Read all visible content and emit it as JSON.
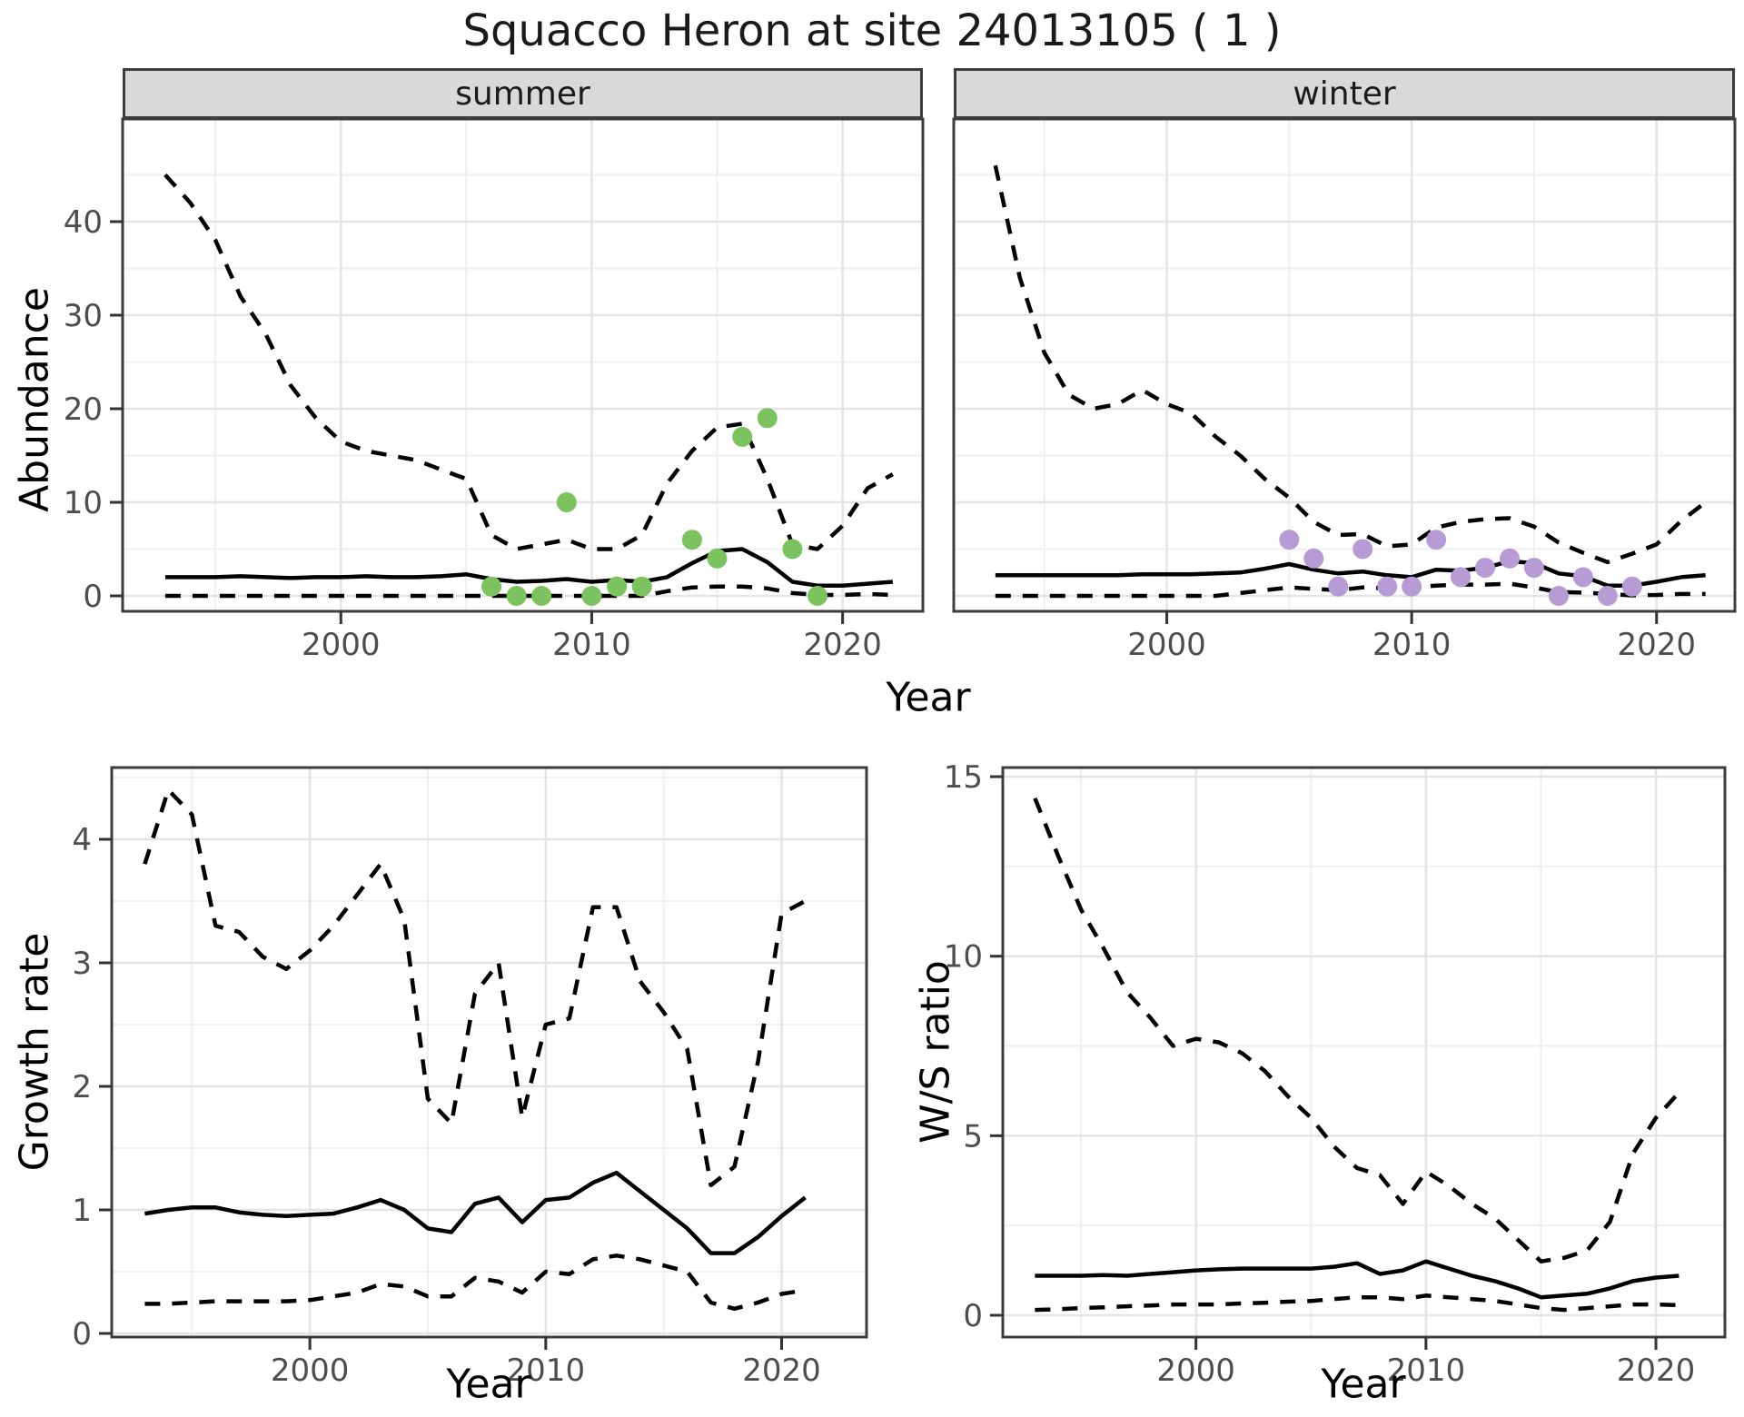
{
  "title": "Squacco Heron at site 24013105 ( 1 )",
  "facets": {
    "summer": "summer",
    "winter": "winter"
  },
  "axes": {
    "abundance_label": "Abundance",
    "top_x_label": "Year",
    "growth_label": "Growth rate",
    "ws_label": "W/S ratio",
    "bottom_left_x_label": "Year",
    "bottom_right_x_label": "Year"
  },
  "colors": {
    "summer_point": "#7AC35F",
    "winter_point": "#B79BD4",
    "line": "#000000",
    "grid_major": "#E4E4E4",
    "grid_minor": "#EFEFEF",
    "strip_bg": "#D9D9D9",
    "panel_border": "#3C3C3C",
    "tick_mark": "#333333",
    "tick_text": "#4D4D4D"
  },
  "chart_data": [
    {
      "id": "abundance-summer",
      "type": "line",
      "facet": "summer",
      "ylabel": "Abundance",
      "xlabel": "Year",
      "x_ticks": [
        2000,
        2010,
        2020
      ],
      "y_ticks": [
        0,
        10,
        20,
        30,
        40
      ],
      "x_range": [
        1991.3,
        2023.2
      ],
      "y_range": [
        -1.7,
        50.9
      ],
      "grid": true,
      "years": [
        1993,
        1994,
        1995,
        1996,
        1997,
        1998,
        1999,
        2000,
        2001,
        2002,
        2003,
        2004,
        2005,
        2006,
        2007,
        2008,
        2009,
        2010,
        2011,
        2012,
        2013,
        2014,
        2015,
        2016,
        2017,
        2018,
        2019,
        2020,
        2021,
        2022
      ],
      "series": [
        {
          "name": "upper_ci",
          "style": "dashed",
          "values": [
            45,
            42,
            38,
            32,
            28,
            22.5,
            19,
            16.5,
            15.5,
            15,
            14.5,
            13.5,
            12.5,
            6.5,
            5,
            5.5,
            6,
            5,
            5,
            6.5,
            12,
            15.5,
            18,
            18.4,
            12.5,
            5.5,
            5,
            7.5,
            11.5,
            13
          ]
        },
        {
          "name": "median",
          "style": "solid",
          "values": [
            2,
            2,
            2,
            2.1,
            2,
            1.9,
            2,
            2,
            2.1,
            2,
            2,
            2.1,
            2.3,
            1.8,
            1.5,
            1.6,
            1.8,
            1.5,
            1.7,
            1.5,
            2,
            3.5,
            4.8,
            5,
            3.6,
            1.5,
            1.1,
            1.1,
            1.3,
            1.5
          ]
        },
        {
          "name": "lower_ci",
          "style": "dashed",
          "values": [
            0,
            0,
            0,
            0,
            0,
            0,
            0,
            0,
            0,
            0,
            0,
            0,
            0,
            0,
            0,
            0,
            0,
            0,
            0,
            0,
            0.5,
            0.9,
            1,
            1,
            0.8,
            0.3,
            0.1,
            0.1,
            0.2,
            0.1
          ]
        }
      ],
      "points": {
        "name": "summer observations",
        "color": "#7AC35F",
        "years": [
          2006,
          2007,
          2008,
          2009,
          2010,
          2011,
          2012,
          2014,
          2015,
          2016,
          2017,
          2018,
          2019
        ],
        "values": [
          1,
          0,
          0,
          10,
          0,
          1,
          1,
          6,
          4,
          17,
          19,
          5,
          0
        ]
      }
    },
    {
      "id": "abundance-winter",
      "type": "line",
      "facet": "winter",
      "ylabel": "Abundance",
      "xlabel": "Year",
      "x_ticks": [
        2000,
        2010,
        2020
      ],
      "y_ticks": [
        0,
        10,
        20,
        30,
        40
      ],
      "x_range": [
        1991.3,
        2023.2
      ],
      "y_range": [
        -1.7,
        50.9
      ],
      "grid": true,
      "years": [
        1993,
        1994,
        1995,
        1996,
        1997,
        1998,
        1999,
        2000,
        2001,
        2002,
        2003,
        2004,
        2005,
        2006,
        2007,
        2008,
        2009,
        2010,
        2011,
        2012,
        2013,
        2014,
        2015,
        2016,
        2017,
        2018,
        2019,
        2020,
        2021,
        2022
      ],
      "series": [
        {
          "name": "upper_ci",
          "style": "dashed",
          "values": [
            46,
            34,
            26,
            21.5,
            20,
            20.5,
            22,
            20.5,
            19.5,
            17,
            15,
            12.5,
            10.5,
            7.9,
            6.5,
            6.6,
            5.3,
            5.5,
            7.3,
            7.9,
            8.2,
            8.3,
            7.4,
            5.7,
            4.6,
            3.6,
            4.5,
            5.5,
            8,
            10
          ]
        },
        {
          "name": "median",
          "style": "solid",
          "values": [
            2.2,
            2.2,
            2.2,
            2.2,
            2.2,
            2.2,
            2.3,
            2.3,
            2.3,
            2.4,
            2.5,
            2.9,
            3.4,
            2.8,
            2.4,
            2.6,
            2.2,
            2,
            2.8,
            2.7,
            3,
            3.7,
            3.5,
            2.4,
            2.1,
            1.1,
            1.1,
            1.5,
            2,
            2.2
          ]
        },
        {
          "name": "lower_ci",
          "style": "dashed",
          "values": [
            0,
            0,
            0,
            0,
            0,
            0,
            0,
            0,
            0,
            0,
            0.3,
            0.6,
            0.9,
            0.75,
            0.6,
            0.9,
            0.8,
            0.9,
            1.1,
            1.2,
            1.2,
            1.3,
            0.9,
            0.4,
            0.35,
            0.2,
            0.05,
            0.1,
            0.2,
            0.2
          ]
        }
      ],
      "points": {
        "name": "winter observations",
        "color": "#B79BD4",
        "years": [
          2005,
          2006,
          2007,
          2008,
          2009,
          2010,
          2011,
          2012,
          2013,
          2014,
          2015,
          2016,
          2017,
          2018,
          2019
        ],
        "values": [
          6,
          4,
          1,
          5,
          1,
          1,
          6,
          2,
          3,
          4,
          3,
          0,
          2,
          0,
          1
        ]
      }
    },
    {
      "id": "growth-rate",
      "type": "line",
      "facet": null,
      "ylabel": "Growth rate",
      "xlabel": "Year",
      "x_ticks": [
        2000,
        2010,
        2020
      ],
      "y_ticks": [
        0,
        1,
        2,
        3,
        4
      ],
      "x_range": [
        1991.6,
        2023.6
      ],
      "y_range": [
        -0.03,
        4.61
      ],
      "grid": true,
      "years": [
        1993,
        1994,
        1995,
        1996,
        1997,
        1998,
        1999,
        2000,
        2001,
        2002,
        2003,
        2004,
        2005,
        2006,
        2007,
        2008,
        2009,
        2010,
        2011,
        2012,
        2013,
        2014,
        2015,
        2016,
        2017,
        2018,
        2019,
        2020,
        2021
      ],
      "series": [
        {
          "name": "upper_ci",
          "style": "dashed",
          "values": [
            3.8,
            4.4,
            4.2,
            3.3,
            3.25,
            3.05,
            2.95,
            3.1,
            3.3,
            3.55,
            3.8,
            3.35,
            1.9,
            1.7,
            2.75,
            3.0,
            1.75,
            2.5,
            2.55,
            3.45,
            3.45,
            2.85,
            2.6,
            2.3,
            1.2,
            1.35,
            2.2,
            3.4,
            3.5
          ]
        },
        {
          "name": "median",
          "style": "solid",
          "values": [
            0.97,
            1.0,
            1.02,
            1.02,
            0.98,
            0.96,
            0.95,
            0.96,
            0.97,
            1.02,
            1.08,
            1.0,
            0.85,
            0.82,
            1.05,
            1.1,
            0.9,
            1.08,
            1.1,
            1.22,
            1.3,
            1.15,
            1.0,
            0.85,
            0.65,
            0.65,
            0.78,
            0.95,
            1.1
          ]
        },
        {
          "name": "lower_ci",
          "style": "dashed",
          "values": [
            0.24,
            0.24,
            0.25,
            0.26,
            0.26,
            0.26,
            0.26,
            0.27,
            0.3,
            0.33,
            0.4,
            0.38,
            0.3,
            0.3,
            0.45,
            0.42,
            0.33,
            0.5,
            0.48,
            0.6,
            0.63,
            0.6,
            0.55,
            0.5,
            0.25,
            0.2,
            0.25,
            0.32,
            0.35
          ]
        }
      ],
      "points": null
    },
    {
      "id": "ws-ratio",
      "type": "line",
      "facet": null,
      "ylabel": "W/S ratio",
      "xlabel": "Year",
      "x_ticks": [
        2000,
        2010,
        2020
      ],
      "y_ticks": [
        0,
        5,
        10,
        15
      ],
      "x_range": [
        1991.6,
        2023.0
      ],
      "y_range": [
        -0.6,
        15.3
      ],
      "grid": true,
      "years": [
        1993,
        1994,
        1995,
        1996,
        1997,
        1998,
        1999,
        2000,
        2001,
        2002,
        2003,
        2004,
        2005,
        2006,
        2007,
        2008,
        2009,
        2010,
        2011,
        2012,
        2013,
        2014,
        2015,
        2016,
        2017,
        2018,
        2019,
        2020,
        2021
      ],
      "series": [
        {
          "name": "upper_ci",
          "style": "dashed",
          "values": [
            14.4,
            12.8,
            11.3,
            10.2,
            9.0,
            8.3,
            7.5,
            7.7,
            7.6,
            7.3,
            6.8,
            6.1,
            5.5,
            4.7,
            4.1,
            3.9,
            3.1,
            4.0,
            3.6,
            3.1,
            2.7,
            2.1,
            1.5,
            1.6,
            1.8,
            2.6,
            4.5,
            5.5,
            6.2
          ]
        },
        {
          "name": "median",
          "style": "solid",
          "values": [
            1.1,
            1.1,
            1.1,
            1.12,
            1.1,
            1.15,
            1.2,
            1.25,
            1.28,
            1.3,
            1.3,
            1.3,
            1.3,
            1.35,
            1.45,
            1.15,
            1.25,
            1.5,
            1.3,
            1.1,
            0.95,
            0.75,
            0.5,
            0.55,
            0.6,
            0.75,
            0.95,
            1.05,
            1.1
          ]
        },
        {
          "name": "lower_ci",
          "style": "dashed",
          "values": [
            0.15,
            0.17,
            0.2,
            0.22,
            0.25,
            0.27,
            0.3,
            0.3,
            0.3,
            0.33,
            0.35,
            0.38,
            0.4,
            0.45,
            0.5,
            0.5,
            0.45,
            0.55,
            0.5,
            0.45,
            0.4,
            0.3,
            0.2,
            0.15,
            0.2,
            0.25,
            0.3,
            0.3,
            0.28
          ]
        }
      ],
      "points": null
    }
  ]
}
